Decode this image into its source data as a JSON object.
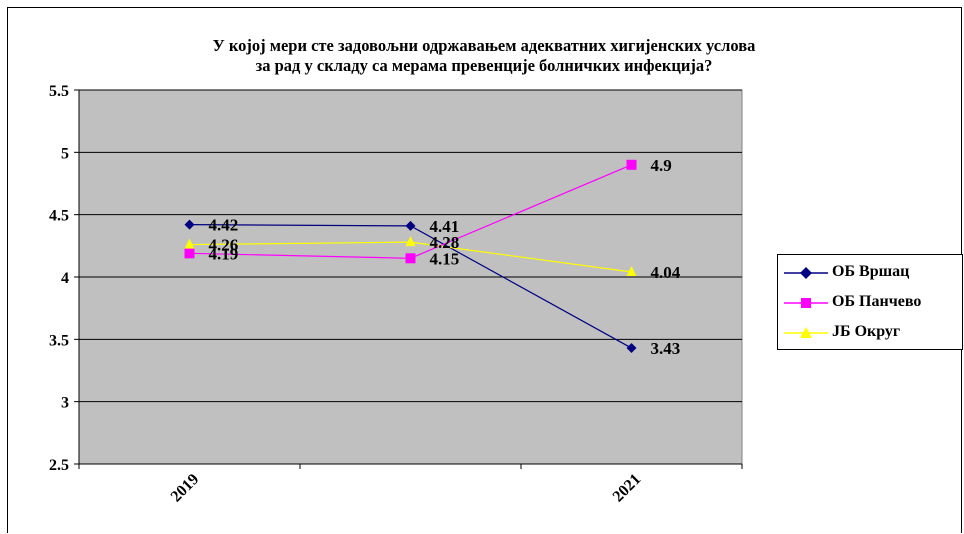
{
  "chart_data": {
    "type": "line",
    "title_lines": [
      "У којој мери сте задовољни одржавањем адекватних хигијенских услова",
      "за рад у складу са мерама превенције болничких инфекција?"
    ],
    "x": [
      "2019",
      "",
      "2021"
    ],
    "x_tick_labels": [
      "2019",
      "2021"
    ],
    "ylim": [
      2.5,
      5.5
    ],
    "yticks": [
      "2.5",
      "3",
      "3.5",
      "4",
      "4.5",
      "5",
      "5.5"
    ],
    "grid": true,
    "legend_position": "right",
    "plot_background": "#c0c0c0",
    "series": [
      {
        "name": "ОБ Вршац",
        "values": [
          4.42,
          4.41,
          3.43
        ],
        "labels": [
          "4.42",
          "4.41",
          "3.43"
        ],
        "color": "#000080",
        "marker": "diamond"
      },
      {
        "name": "ОБ Панчево",
        "values": [
          4.19,
          4.15,
          4.9
        ],
        "labels": [
          "4.19",
          "4.15",
          "4.9"
        ],
        "color": "#ff00ff",
        "marker": "square"
      },
      {
        "name": "ЈБ Округ",
        "values": [
          4.26,
          4.28,
          4.04
        ],
        "labels": [
          "4.26",
          "4.28",
          "4.04"
        ],
        "color": "#ffff00",
        "marker": "triangle"
      }
    ]
  }
}
